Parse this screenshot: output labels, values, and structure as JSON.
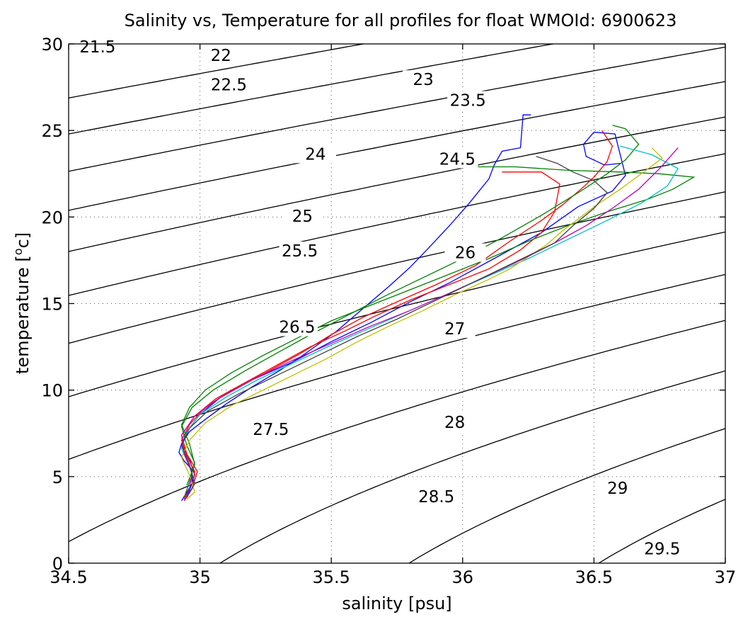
{
  "chart_data": {
    "type": "line",
    "title": "Salinity vs, Temperature for all profiles for float WMOId: 6900623",
    "xlabel": "salinity [psu]",
    "ylabel": "temperature [",
    "ylabel_sup": "o",
    "ylabel_tail": "c]",
    "xlim": [
      34.5,
      37
    ],
    "ylim": [
      0,
      30
    ],
    "xticks": [
      "34.5",
      "35",
      "35.5",
      "36",
      "36.5",
      "37"
    ],
    "yticks": [
      "0",
      "5",
      "10",
      "15",
      "20",
      "25",
      "30"
    ],
    "grid": true,
    "contour_levels": [
      21.5,
      22,
      22.5,
      23,
      23.5,
      24,
      24.5,
      25,
      25.5,
      26,
      26.5,
      27,
      27.5,
      28,
      28.5,
      29,
      29.5
    ],
    "contour_labels": [
      {
        "text": "21.5",
        "s": 34.61,
        "t": 29.6
      },
      {
        "text": "22",
        "s": 35.08,
        "t": 29.1
      },
      {
        "text": "22.5",
        "s": 35.11,
        "t": 27.4
      },
      {
        "text": "23",
        "s": 35.85,
        "t": 27.7
      },
      {
        "text": "23.5",
        "s": 36.02,
        "t": 26.5
      },
      {
        "text": "24",
        "s": 35.44,
        "t": 23.4
      },
      {
        "text": "24.5",
        "s": 35.98,
        "t": 23.1
      },
      {
        "text": "25",
        "s": 35.39,
        "t": 19.8
      },
      {
        "text": "25.5",
        "s": 35.38,
        "t": 17.8
      },
      {
        "text": "26",
        "s": 36.01,
        "t": 17.7
      },
      {
        "text": "26.5",
        "s": 35.37,
        "t": 13.4
      },
      {
        "text": "27",
        "s": 35.97,
        "t": 13.3
      },
      {
        "text": "27.5",
        "s": 35.27,
        "t": 7.5
      },
      {
        "text": "28",
        "s": 35.97,
        "t": 7.9
      },
      {
        "text": "28.5",
        "s": 35.9,
        "t": 3.6
      },
      {
        "text": "29",
        "s": 36.59,
        "t": 4.1
      },
      {
        "text": "29.5",
        "s": 36.76,
        "t": 0.6
      }
    ],
    "series": [
      {
        "color": "#0000ff",
        "x": [
          36.26,
          36.23,
          36.22,
          36.15,
          36.12,
          36.1,
          36.02,
          35.95,
          35.87,
          35.8,
          35.72,
          35.62,
          35.52,
          35.4,
          35.3,
          35.2,
          35.1,
          35.02,
          34.96,
          34.93,
          34.92,
          34.94,
          34.97,
          34.97,
          34.93
        ],
        "y": [
          25.9,
          25.9,
          24.0,
          23.8,
          23.0,
          22.2,
          20.7,
          19.5,
          18.2,
          17.1,
          16.0,
          14.7,
          13.4,
          12.1,
          11.1,
          10.2,
          9.2,
          8.3,
          7.6,
          6.9,
          6.4,
          5.9,
          5.4,
          4.6,
          3.6
        ]
      },
      {
        "color": "#0000ff",
        "x": [
          36.6,
          36.54,
          36.47,
          36.46,
          36.5,
          36.58,
          36.62,
          36.57,
          36.44,
          36.3,
          36.12,
          35.95,
          35.8,
          35.65,
          35.5,
          35.35,
          35.2,
          35.08,
          35.0,
          34.95,
          34.93,
          34.96,
          34.98,
          34.96,
          34.94
        ],
        "y": [
          23.1,
          23.0,
          23.5,
          24.2,
          24.9,
          24.8,
          22.4,
          21.5,
          20.6,
          19.1,
          17.6,
          16.2,
          15.1,
          13.9,
          12.8,
          11.6,
          10.6,
          9.6,
          8.6,
          7.6,
          6.8,
          6.0,
          5.1,
          4.2,
          3.7
        ]
      },
      {
        "color": "#ff0000",
        "x": [
          36.53,
          36.57,
          36.55,
          36.5,
          36.45,
          36.38,
          36.3,
          36.18,
          36.05,
          35.9,
          35.75,
          35.62,
          35.5,
          35.38,
          35.25,
          35.12,
          35.02,
          34.96,
          34.93,
          34.95,
          34.98,
          34.97,
          34.94
        ],
        "y": [
          25.0,
          24.1,
          23.2,
          22.3,
          21.6,
          20.7,
          19.8,
          18.6,
          17.2,
          16.1,
          15.1,
          14.2,
          13.2,
          12.1,
          11.0,
          10.0,
          9.0,
          8.0,
          7.1,
          6.2,
          5.3,
          4.3,
          3.6
        ]
      },
      {
        "color": "#ff0000",
        "x": [
          36.15,
          36.3,
          36.37,
          36.35,
          36.3,
          36.22,
          36.1,
          35.95,
          35.8,
          35.67,
          35.55,
          35.42,
          35.3,
          35.18,
          35.06,
          34.98,
          34.93,
          34.95,
          34.99,
          34.97,
          34.94
        ],
        "y": [
          22.6,
          22.6,
          21.9,
          20.3,
          19.1,
          18.1,
          17.0,
          16.1,
          15.2,
          14.3,
          13.4,
          12.5,
          11.5,
          10.5,
          9.5,
          8.5,
          7.4,
          6.3,
          5.3,
          4.3,
          3.7
        ]
      },
      {
        "color": "#008000",
        "x": [
          36.57,
          36.62,
          36.67,
          36.62,
          36.55,
          36.45,
          36.3,
          36.15,
          36.0,
          35.85,
          35.7,
          35.56,
          35.42,
          35.3,
          35.17,
          35.05,
          34.97,
          34.93,
          34.95,
          34.98,
          34.96,
          34.94
        ],
        "y": [
          25.3,
          25.1,
          24.2,
          23.3,
          22.5,
          21.5,
          20.1,
          18.8,
          17.6,
          16.5,
          15.4,
          14.3,
          13.2,
          12.2,
          11.1,
          10.0,
          9.0,
          7.9,
          6.8,
          5.8,
          4.7,
          3.8
        ]
      },
      {
        "color": "#008000",
        "x": [
          35.92,
          36.05,
          36.2,
          36.4,
          36.6,
          36.75,
          36.88,
          36.8,
          36.7,
          36.55,
          36.4,
          36.25,
          36.1,
          35.95,
          35.8,
          35.65,
          35.5,
          35.37,
          35.24,
          35.12,
          35.02,
          34.96,
          34.93,
          34.96,
          34.98,
          34.95
        ],
        "y": [
          22.9,
          22.9,
          22.9,
          22.7,
          22.6,
          22.5,
          22.3,
          21.6,
          21.0,
          20.3,
          19.5,
          18.6,
          17.6,
          16.7,
          15.8,
          14.9,
          14.0,
          13.0,
          12.0,
          11.0,
          10.0,
          9.0,
          8.0,
          6.9,
          5.7,
          4.5
        ]
      },
      {
        "color": "#00bfbf",
        "x": [
          36.6,
          36.72,
          36.82,
          36.78,
          36.68,
          36.55,
          36.4,
          36.25,
          36.1,
          35.95,
          35.8,
          35.65,
          35.5,
          35.36,
          35.22,
          35.1,
          35.0,
          34.95,
          34.93,
          34.96,
          34.98,
          34.95
        ],
        "y": [
          24.1,
          23.6,
          22.8,
          21.8,
          20.8,
          19.8,
          18.7,
          17.6,
          16.6,
          15.6,
          14.6,
          13.6,
          12.6,
          11.6,
          10.6,
          9.6,
          8.6,
          7.6,
          6.6,
          5.6,
          4.6,
          3.8
        ]
      },
      {
        "color": "#bfbf00",
        "x": [
          36.72,
          36.76,
          36.68,
          36.6,
          36.52,
          36.45,
          36.38,
          36.32,
          36.25,
          36.18,
          36.1,
          35.97,
          35.85,
          35.72,
          35.6,
          35.48,
          35.36,
          35.24,
          35.12,
          35.02,
          34.96,
          34.93,
          34.96,
          34.98,
          34.95
        ],
        "y": [
          24.0,
          23.4,
          22.5,
          21.6,
          20.8,
          20.0,
          19.2,
          18.4,
          17.7,
          17.0,
          16.4,
          15.5,
          14.6,
          13.7,
          12.8,
          11.8,
          10.9,
          10.0,
          9.1,
          8.1,
          7.1,
          6.1,
          5.1,
          4.1,
          3.7
        ]
      },
      {
        "color": "#bf00bf",
        "x": [
          36.82,
          36.75,
          36.67,
          36.57,
          36.47,
          36.35,
          36.22,
          36.08,
          35.95,
          35.8,
          35.65,
          35.5,
          35.35,
          35.2,
          35.07,
          34.98,
          34.93,
          34.94,
          34.97,
          34.96,
          34.94
        ],
        "y": [
          24.0,
          22.8,
          21.6,
          20.5,
          19.5,
          18.5,
          17.5,
          16.5,
          15.6,
          14.6,
          13.7,
          12.7,
          11.7,
          10.6,
          9.5,
          8.5,
          7.4,
          6.3,
          5.2,
          4.3,
          3.7
        ]
      },
      {
        "color": "#404040",
        "x": [
          36.28,
          36.36,
          36.42,
          36.5,
          36.55,
          36.5,
          36.42,
          36.35,
          36.2,
          36.05,
          35.9,
          35.75,
          35.6,
          35.45,
          35.3,
          35.15,
          35.03,
          34.96,
          34.93,
          34.96,
          34.98,
          34.95
        ],
        "y": [
          23.5,
          23.1,
          22.6,
          22.1,
          21.4,
          20.5,
          19.5,
          18.5,
          17.4,
          16.3,
          15.2,
          14.1,
          13.1,
          12.0,
          10.9,
          9.8,
          8.8,
          7.8,
          6.8,
          5.7,
          4.6,
          3.8
        ]
      }
    ]
  }
}
